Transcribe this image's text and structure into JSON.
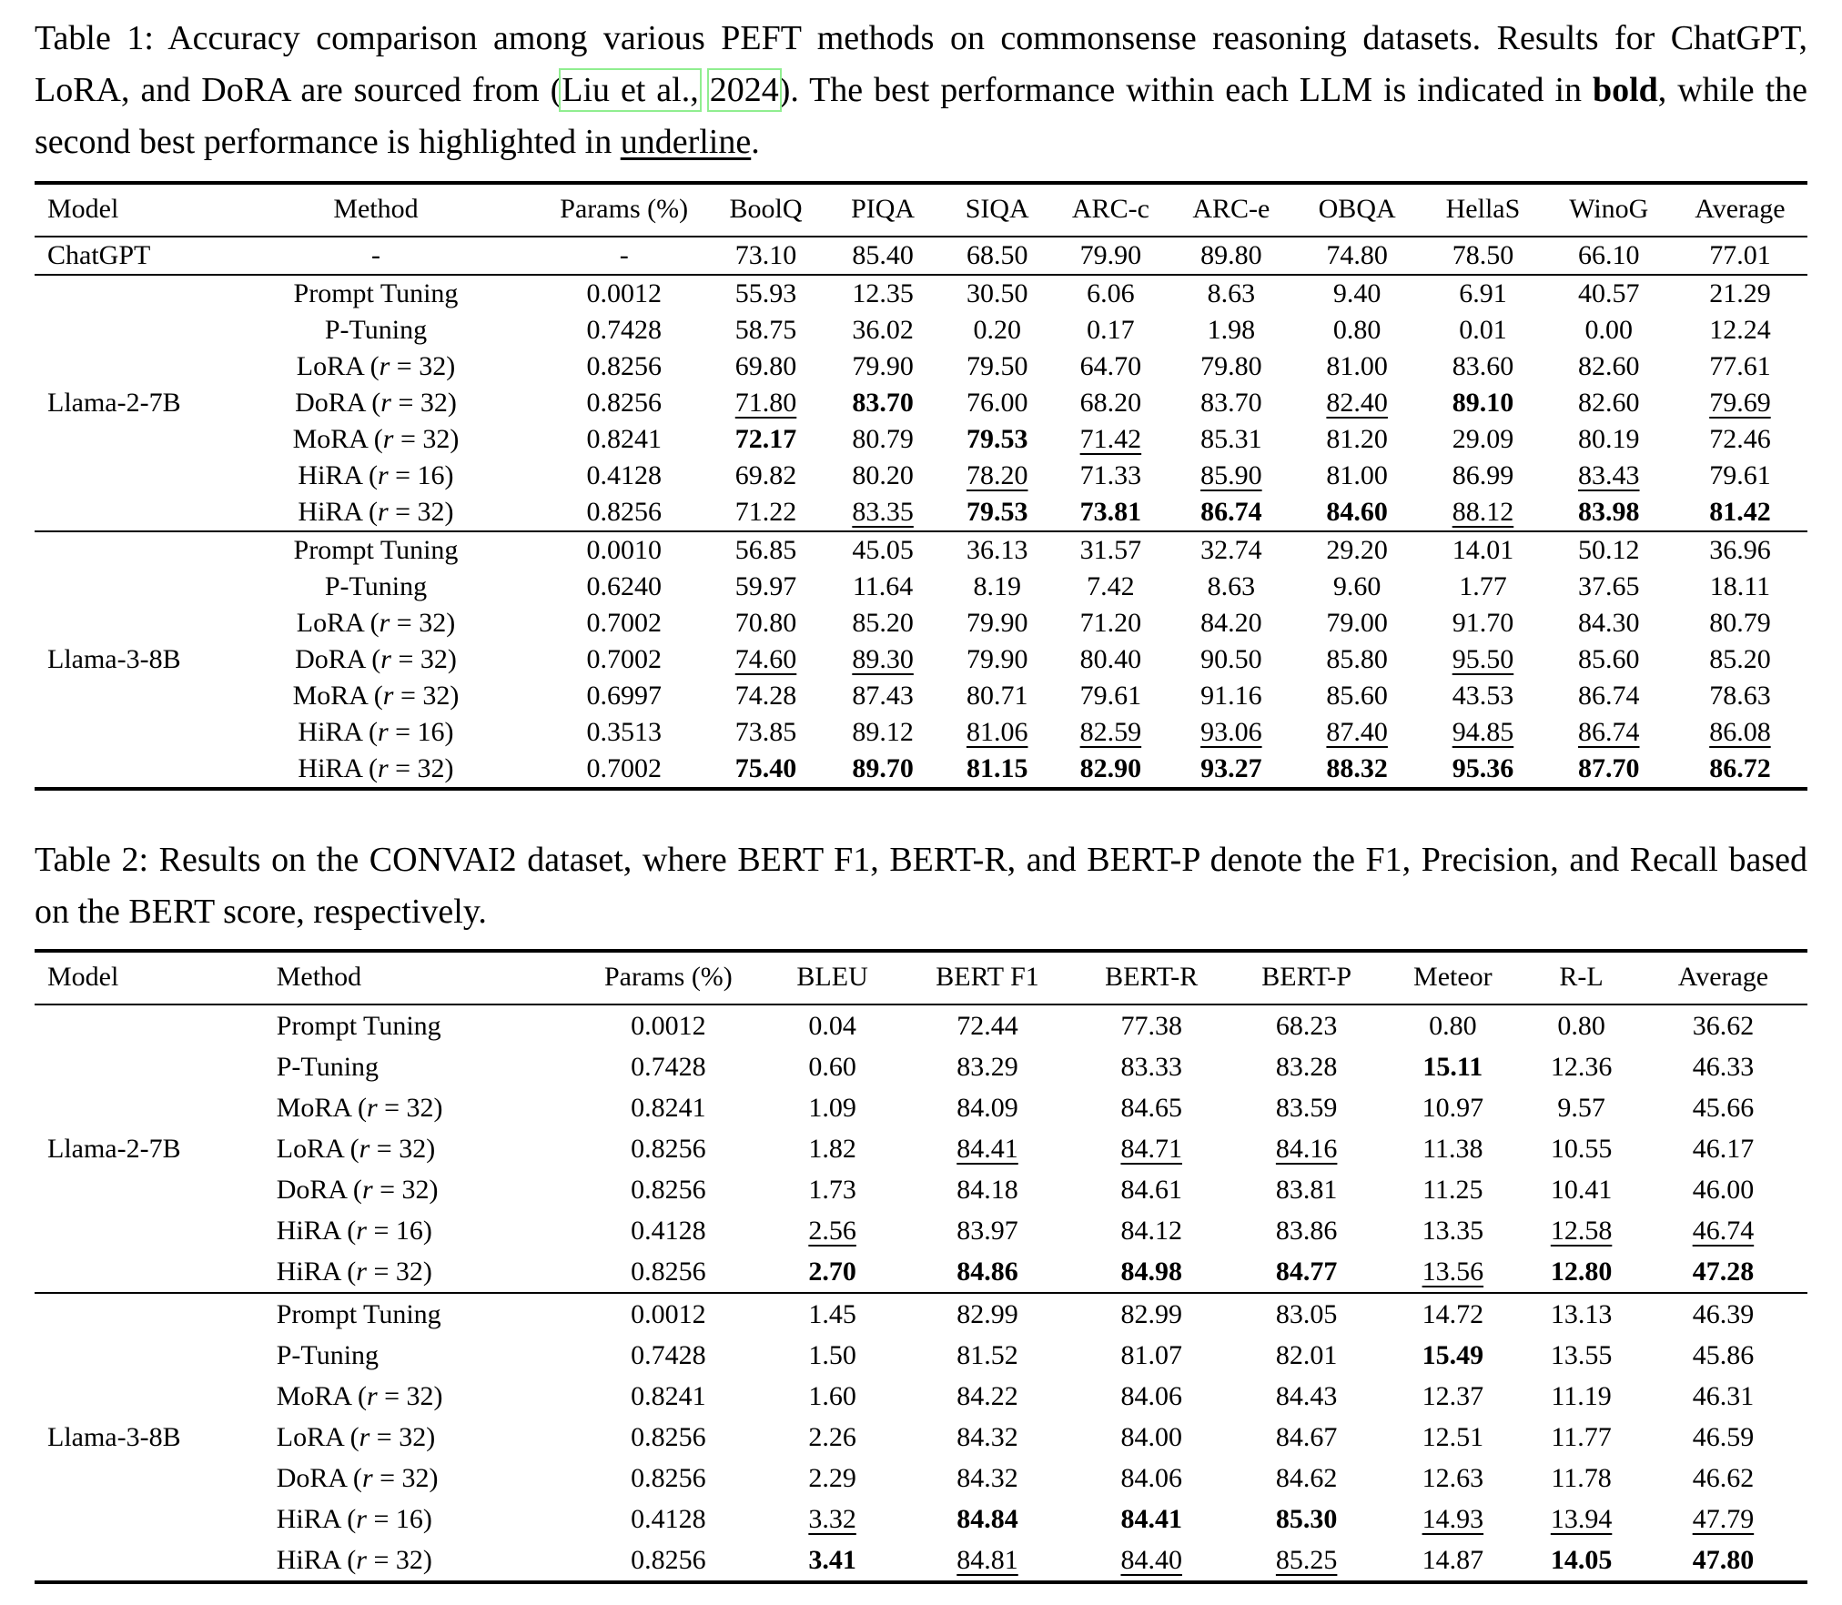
{
  "table1": {
    "caption_segments": [
      {
        "t": "Table 1: Accuracy comparison among various PEFT methods on commonsense reasoning datasets. Results for ChatGPT, LoRA, and DoRA are sourced from ("
      },
      {
        "t": "Liu et al.,",
        "style": "link"
      },
      {
        "t": " "
      },
      {
        "t": "2024",
        "style": "link"
      },
      {
        "t": "). The best performance within each LLM is indicated in "
      },
      {
        "t": "bold",
        "style": "b"
      },
      {
        "t": ", while the second best performance is highlighted in "
      },
      {
        "t": "underline",
        "style": "u"
      },
      {
        "t": "."
      }
    ],
    "headers": [
      "Model",
      "Method",
      "Params (%)",
      "BoolQ",
      "PIQA",
      "SIQA",
      "ARC-c",
      "ARC-e",
      "OBQA",
      "HellaS",
      "WinoG",
      "Average"
    ],
    "method_align": "center",
    "groups": [
      {
        "model": "ChatGPT",
        "rows": [
          {
            "method": "-",
            "params": "-",
            "values": [
              "73.10",
              "85.40",
              "68.50",
              "79.90",
              "89.80",
              "74.80",
              "78.50",
              "66.10",
              "77.01"
            ]
          }
        ]
      },
      {
        "model": "Llama-2-7B",
        "rows": [
          {
            "method": "Prompt Tuning",
            "params": "0.0012",
            "values": [
              "55.93",
              "12.35",
              "30.50",
              "6.06",
              "8.63",
              "9.40",
              "6.91",
              "40.57",
              "21.29"
            ]
          },
          {
            "method": "P-Tuning",
            "params": "0.7428",
            "values": [
              "58.75",
              "36.02",
              "0.20",
              "0.17",
              "1.98",
              "0.80",
              "0.01",
              "0.00",
              "12.24"
            ]
          },
          {
            "method": "LoRA (r = 32)",
            "params": "0.8256",
            "values": [
              "69.80",
              "79.90",
              "79.50",
              "64.70",
              "79.80",
              "81.00",
              "83.60",
              "82.60",
              "77.61"
            ]
          },
          {
            "method": "DoRA (r = 32)",
            "params": "0.8256",
            "values": [
              "u:71.80",
              "b:83.70",
              "76.00",
              "68.20",
              "83.70",
              "u:82.40",
              "b:89.10",
              "82.60",
              "u:79.69"
            ]
          },
          {
            "method": "MoRA (r = 32)",
            "params": "0.8241",
            "values": [
              "b:72.17",
              "80.79",
              "b:79.53",
              "u:71.42",
              "85.31",
              "81.20",
              "29.09",
              "80.19",
              "72.46"
            ]
          },
          {
            "method": "HiRA (r = 16)",
            "params": "0.4128",
            "values": [
              "69.82",
              "80.20",
              "u:78.20",
              "71.33",
              "u:85.90",
              "81.00",
              "86.99",
              "u:83.43",
              "79.61"
            ]
          },
          {
            "method": "HiRA (r = 32)",
            "params": "0.8256",
            "values": [
              "71.22",
              "u:83.35",
              "b:79.53",
              "b:73.81",
              "b:86.74",
              "b:84.60",
              "u:88.12",
              "b:83.98",
              "b:81.42"
            ]
          }
        ]
      },
      {
        "model": "Llama-3-8B",
        "rows": [
          {
            "method": "Prompt Tuning",
            "params": "0.0010",
            "values": [
              "56.85",
              "45.05",
              "36.13",
              "31.57",
              "32.74",
              "29.20",
              "14.01",
              "50.12",
              "36.96"
            ]
          },
          {
            "method": "P-Tuning",
            "params": "0.6240",
            "values": [
              "59.97",
              "11.64",
              "8.19",
              "7.42",
              "8.63",
              "9.60",
              "1.77",
              "37.65",
              "18.11"
            ]
          },
          {
            "method": "LoRA (r = 32)",
            "params": "0.7002",
            "values": [
              "70.80",
              "85.20",
              "79.90",
              "71.20",
              "84.20",
              "79.00",
              "91.70",
              "84.30",
              "80.79"
            ]
          },
          {
            "method": "DoRA (r = 32)",
            "params": "0.7002",
            "values": [
              "u:74.60",
              "u:89.30",
              "79.90",
              "80.40",
              "90.50",
              "85.80",
              "u:95.50",
              "85.60",
              "85.20"
            ]
          },
          {
            "method": "MoRA (r = 32)",
            "params": "0.6997",
            "values": [
              "74.28",
              "87.43",
              "80.71",
              "79.61",
              "91.16",
              "85.60",
              "43.53",
              "86.74",
              "78.63"
            ]
          },
          {
            "method": "HiRA (r = 16)",
            "params": "0.3513",
            "values": [
              "73.85",
              "89.12",
              "u:81.06",
              "u:82.59",
              "u:93.06",
              "u:87.40",
              "u:94.85",
              "u:86.74",
              "u:86.08"
            ]
          },
          {
            "method": "HiRA (r = 32)",
            "params": "0.7002",
            "values": [
              "b:75.40",
              "b:89.70",
              "b:81.15",
              "b:82.90",
              "b:93.27",
              "b:88.32",
              "b:95.36",
              "b:87.70",
              "b:86.72"
            ]
          }
        ]
      }
    ]
  },
  "table2": {
    "caption_segments": [
      {
        "t": "Table 2: Results on the CONVAI2 dataset, where BERT F1, BERT-R, and BERT-P denote the F1, Precision, and Recall based on the BERT score, respectively."
      }
    ],
    "headers": [
      "Model",
      "Method",
      "Params (%)",
      "BLEU",
      "BERT F1",
      "BERT-R",
      "BERT-P",
      "Meteor",
      "R-L",
      "Average"
    ],
    "method_align": "left",
    "groups": [
      {
        "model": "Llama-2-7B",
        "rows": [
          {
            "method": "Prompt Tuning",
            "params": "0.0012",
            "values": [
              "0.04",
              "72.44",
              "77.38",
              "68.23",
              "0.80",
              "0.80",
              "36.62"
            ]
          },
          {
            "method": "P-Tuning",
            "params": "0.7428",
            "values": [
              "0.60",
              "83.29",
              "83.33",
              "83.28",
              "b:15.11",
              "12.36",
              "46.33"
            ]
          },
          {
            "method": "MoRA (r = 32)",
            "params": "0.8241",
            "values": [
              "1.09",
              "84.09",
              "84.65",
              "83.59",
              "10.97",
              "9.57",
              "45.66"
            ]
          },
          {
            "method": "LoRA (r = 32)",
            "params": "0.8256",
            "values": [
              "1.82",
              "u:84.41",
              "u:84.71",
              "u:84.16",
              "11.38",
              "10.55",
              "46.17"
            ]
          },
          {
            "method": "DoRA (r = 32)",
            "params": "0.8256",
            "values": [
              "1.73",
              "84.18",
              "84.61",
              "83.81",
              "11.25",
              "10.41",
              "46.00"
            ]
          },
          {
            "method": "HiRA (r = 16)",
            "params": "0.4128",
            "values": [
              "u:2.56",
              "83.97",
              "84.12",
              "83.86",
              "13.35",
              "u:12.58",
              "u:46.74"
            ]
          },
          {
            "method": "HiRA (r = 32)",
            "params": "0.8256",
            "values": [
              "b:2.70",
              "b:84.86",
              "b:84.98",
              "b:84.77",
              "u:13.56",
              "b:12.80",
              "b:47.28"
            ]
          }
        ]
      },
      {
        "model": "Llama-3-8B",
        "rows": [
          {
            "method": "Prompt Tuning",
            "params": "0.0012",
            "values": [
              "1.45",
              "82.99",
              "82.99",
              "83.05",
              "14.72",
              "13.13",
              "46.39"
            ]
          },
          {
            "method": "P-Tuning",
            "params": "0.7428",
            "values": [
              "1.50",
              "81.52",
              "81.07",
              "82.01",
              "b:15.49",
              "13.55",
              "45.86"
            ]
          },
          {
            "method": "MoRA (r = 32)",
            "params": "0.8241",
            "values": [
              "1.60",
              "84.22",
              "84.06",
              "84.43",
              "12.37",
              "11.19",
              "46.31"
            ]
          },
          {
            "method": "LoRA (r = 32)",
            "params": "0.8256",
            "values": [
              "2.26",
              "84.32",
              "84.00",
              "84.67",
              "12.51",
              "11.77",
              "46.59"
            ]
          },
          {
            "method": "DoRA (r = 32)",
            "params": "0.8256",
            "values": [
              "2.29",
              "84.32",
              "84.06",
              "84.62",
              "12.63",
              "11.78",
              "46.62"
            ]
          },
          {
            "method": "HiRA (r = 16)",
            "params": "0.4128",
            "values": [
              "u:3.32",
              "b:84.84",
              "b:84.41",
              "b:85.30",
              "u:14.93",
              "u:13.94",
              "u:47.79"
            ]
          },
          {
            "method": "HiRA (r = 32)",
            "params": "0.8256",
            "values": [
              "b:3.41",
              "u:84.81",
              "u:84.40",
              "u:85.25",
              "14.87",
              "b:14.05",
              "b:47.80"
            ]
          }
        ]
      }
    ]
  },
  "colors": {
    "citation_box": "#90ee90",
    "text": "#000000",
    "background": "#ffffff"
  }
}
